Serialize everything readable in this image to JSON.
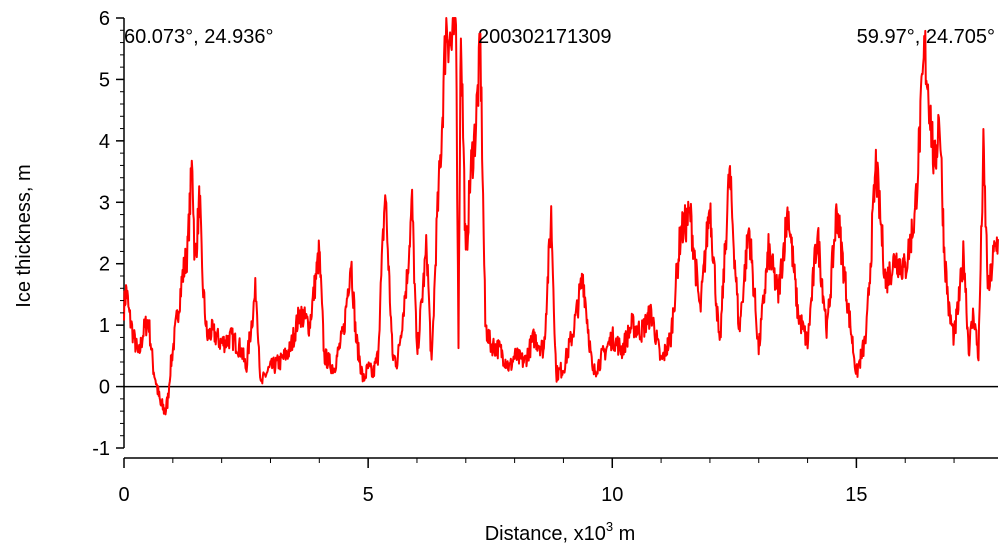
{
  "chart_data": {
    "type": "line",
    "xlabel": "Distance,  x10",
    "xlabel_exponent": "3",
    "xlabel_unit": " m",
    "ylabel": "Ice thickness, m",
    "xlim": [
      0,
      17.9
    ],
    "ylim": [
      -1,
      6
    ],
    "xticks": [
      0,
      5,
      10,
      15
    ],
    "xtick_labels": [
      "0",
      "5",
      "10",
      "15"
    ],
    "yticks": [
      -1,
      0,
      1,
      2,
      3,
      4,
      5,
      6
    ],
    "ytick_labels": [
      "-1",
      "0",
      "1",
      "2",
      "3",
      "4",
      "5",
      "6"
    ],
    "grid": false,
    "zero_line": true,
    "line_color": "#ff0000",
    "annotations": {
      "start_coord": "60.073°, 24.936°",
      "profile_id": "200302171309",
      "end_coord": "59.97°, 24.705°"
    },
    "series": [
      {
        "x": [
          0,
          0.05,
          0.1,
          0.2,
          0.3,
          0.4,
          0.5,
          0.6,
          0.7,
          0.75,
          0.85,
          0.9,
          0.95,
          1.0,
          1.1,
          1.2,
          1.3,
          1.4,
          1.45,
          1.5,
          1.55,
          1.6,
          1.7,
          1.8,
          2.0,
          2.2,
          2.4,
          2.5,
          2.7,
          2.75,
          2.8,
          2.9,
          3.0,
          3.2,
          3.4,
          3.6,
          3.8,
          4.0,
          4.1,
          4.3,
          4.5,
          4.65,
          4.75,
          4.9,
          5.0,
          5.1,
          5.2,
          5.35,
          5.5,
          5.6,
          5.8,
          5.9,
          6.0,
          6.2,
          6.3,
          6.4,
          6.5,
          6.6,
          6.7,
          6.8,
          6.85,
          6.9,
          7.0,
          7.1,
          7.2,
          7.3,
          7.4,
          7.5,
          7.7,
          7.9,
          8.0,
          8.2,
          8.4,
          8.6,
          8.75,
          8.85,
          9.0,
          9.2,
          9.4,
          9.6,
          9.8,
          10.0,
          10.2,
          10.4,
          10.6,
          10.8,
          11.0,
          11.2,
          11.4,
          11.6,
          11.8,
          12.0,
          12.2,
          12.4,
          12.6,
          12.8,
          13.0,
          13.2,
          13.4,
          13.6,
          13.8,
          14.0,
          14.2,
          14.4,
          14.6,
          14.8,
          15.0,
          15.2,
          15.4,
          15.6,
          15.8,
          16.0,
          16.2,
          16.4,
          16.5,
          16.6,
          16.7,
          16.8,
          16.9,
          17.0,
          17.1,
          17.2,
          17.3,
          17.4,
          17.5,
          17.6,
          17.7,
          17.8,
          17.9
        ],
        "values": [
          1.3,
          1.6,
          1.2,
          0.8,
          0.5,
          0.9,
          1.1,
          0.3,
          -0.1,
          -0.3,
          -0.4,
          -0.2,
          0.3,
          0.6,
          1.2,
          1.8,
          2.2,
          3.7,
          2.0,
          2.5,
          3.1,
          1.8,
          0.8,
          0.9,
          0.7,
          0.8,
          0.6,
          0.3,
          1.6,
          0.9,
          0.0,
          0.2,
          0.3,
          0.4,
          0.6,
          1.2,
          1.0,
          2.2,
          0.5,
          0.3,
          0.9,
          2.1,
          0.8,
          0.1,
          0.3,
          0.2,
          0.5,
          3.2,
          0.5,
          0.4,
          1.8,
          3.0,
          0.5,
          2.3,
          0.3,
          2.5,
          4.0,
          6.0,
          5.5,
          6.0,
          0.8,
          6.0,
          2.0,
          3.5,
          4.2,
          5.5,
          1.0,
          0.7,
          0.6,
          0.3,
          0.5,
          0.4,
          0.8,
          0.6,
          2.8,
          0.2,
          0.3,
          0.9,
          1.8,
          0.2,
          0.5,
          0.8,
          0.6,
          1.0,
          0.9,
          1.2,
          0.4,
          0.8,
          2.5,
          2.8,
          1.2,
          3.0,
          0.6,
          3.5,
          0.9,
          2.6,
          0.6,
          2.2,
          1.5,
          2.9,
          1.2,
          0.7,
          2.5,
          0.9,
          2.9,
          1.5,
          0.2,
          0.8,
          3.6,
          1.7,
          2.1,
          1.9,
          2.8,
          5.5,
          4.6,
          3.5,
          4.5,
          2.2,
          1.2,
          0.8,
          1.4,
          2.2,
          0.6,
          1.2,
          0.5,
          3.8,
          1.5,
          2.1,
          2.4
        ]
      }
    ]
  }
}
